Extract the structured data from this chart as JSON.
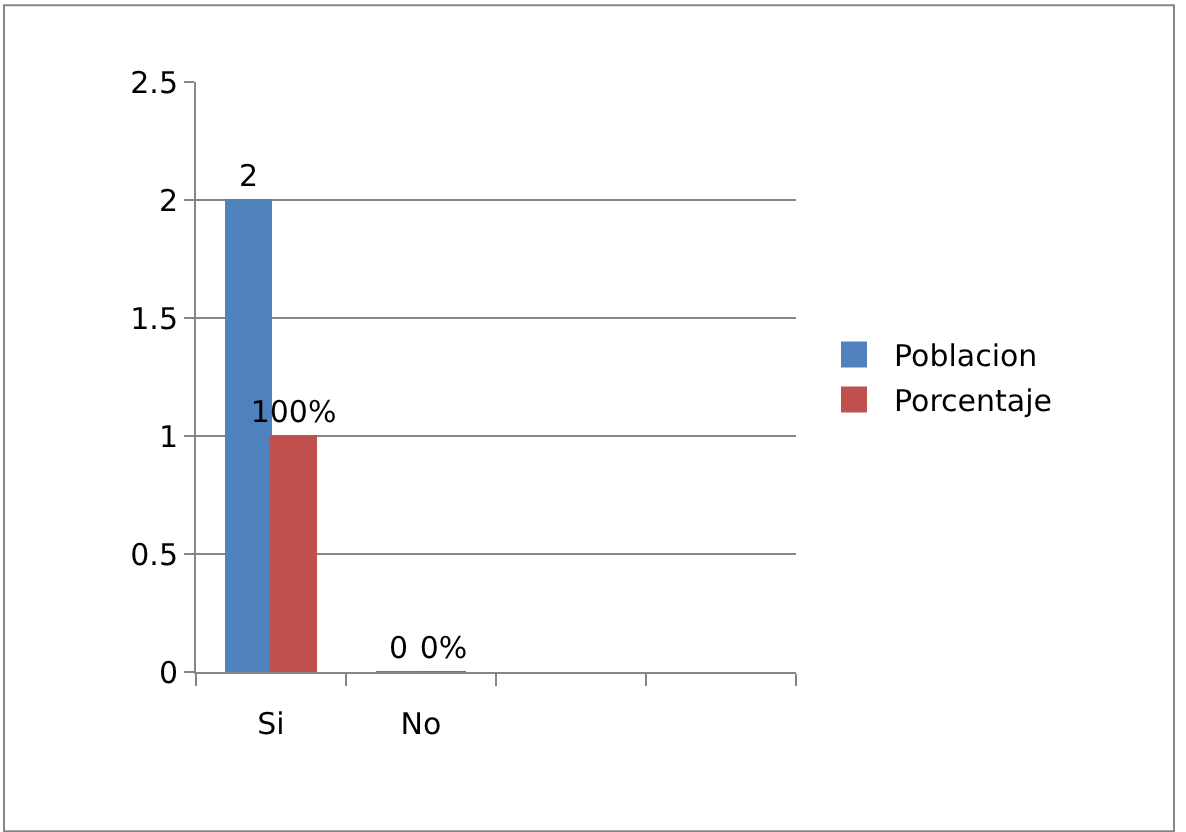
{
  "chart_data": {
    "type": "bar",
    "categories": [
      "Si",
      "No",
      null,
      null
    ],
    "series": [
      {
        "name": "Poblacion",
        "color": "#4f81bd",
        "values": [
          2,
          0,
          null,
          null
        ],
        "value_labels": [
          "2",
          "0",
          null,
          null
        ]
      },
      {
        "name": "Porcentaje",
        "color": "#c0504d",
        "values": [
          1,
          0,
          null,
          null
        ],
        "value_labels": [
          "100%",
          "0%",
          null,
          null
        ]
      }
    ],
    "ylim": [
      0,
      2.5
    ],
    "yticks": [
      0,
      0.5,
      1,
      1.5,
      2,
      2.5
    ],
    "grid": "y",
    "legend": "right"
  }
}
